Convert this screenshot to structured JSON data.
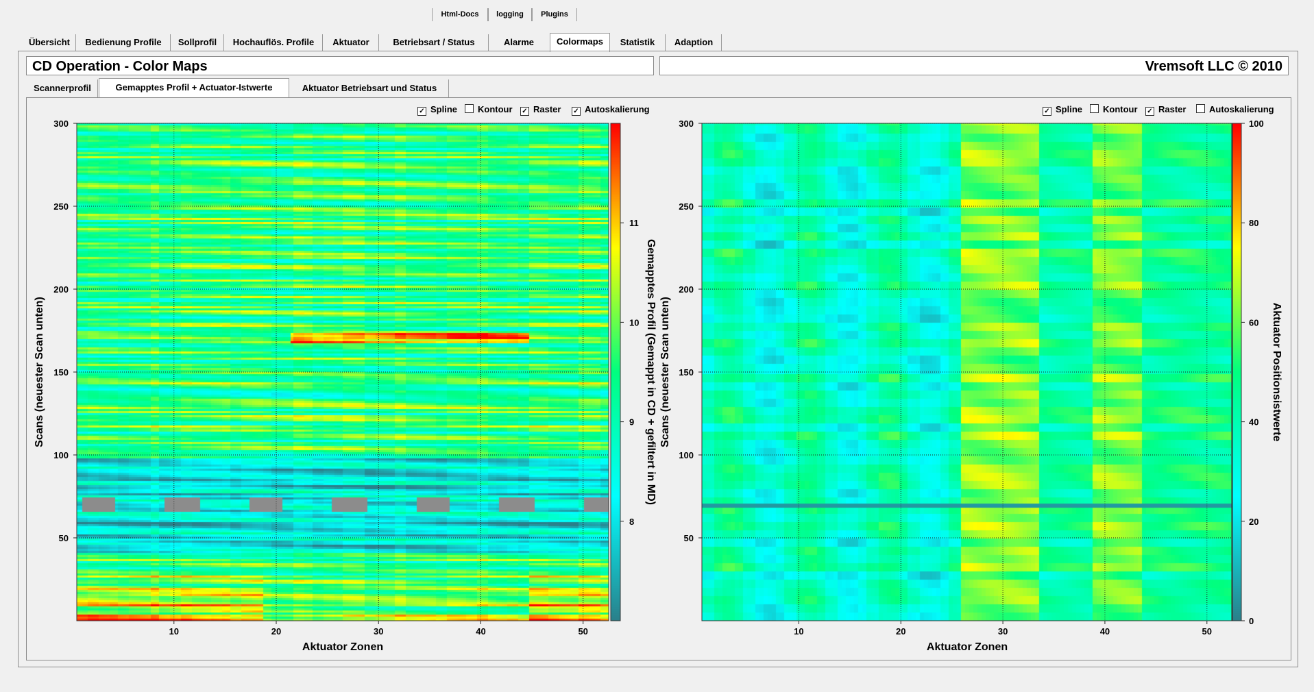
{
  "top_buttons": [
    {
      "label": "Html-Docs"
    },
    {
      "label": "logging"
    },
    {
      "label": "Plugins"
    }
  ],
  "tabs": [
    {
      "label": "Übersicht",
      "active": false
    },
    {
      "label": "Bedienung Profile",
      "active": false
    },
    {
      "label": "Sollprofil",
      "active": false
    },
    {
      "label": "Hochauflös. Profile",
      "active": false
    },
    {
      "label": "Aktuator",
      "active": false
    },
    {
      "label": "Betriebsart / Status",
      "active": false
    },
    {
      "label": "Alarme",
      "active": false
    },
    {
      "label": "Colormaps",
      "active": true
    },
    {
      "label": "Statistik",
      "active": false
    },
    {
      "label": "Adaption",
      "active": false
    }
  ],
  "header": {
    "title": "CD Operation - Color Maps",
    "copyright": "Vremsoft LLC © 2010"
  },
  "subtabs": [
    {
      "label": "Scannerprofil",
      "active": false
    },
    {
      "label": "Gemapptes Profil + Actuator-Istwerte",
      "active": true
    },
    {
      "label": "Aktuator Betriebsart und Status",
      "active": false
    }
  ],
  "left_options": [
    {
      "label": "Spline",
      "checked": true
    },
    {
      "label": "Kontour",
      "checked": false
    },
    {
      "label": "Raster",
      "checked": true
    },
    {
      "label": "Autoskalierung",
      "checked": true
    }
  ],
  "right_options": [
    {
      "label": "Spline",
      "checked": true
    },
    {
      "label": "Kontour",
      "checked": false
    },
    {
      "label": "Raster",
      "checked": true
    },
    {
      "label": "Autoskalierung",
      "checked": false
    }
  ],
  "chart_data": [
    {
      "type": "heatmap",
      "xlabel": "Aktuator Zonen",
      "ylabel": "Scans (neuester Scan unten)",
      "colorbar_label": "Gemapptes Profil (Gemappt in CD + gefiltert in MD)",
      "x_ticks": [
        "10",
        "20",
        "30",
        "40",
        "50"
      ],
      "y_ticks": [
        "50",
        "100",
        "150",
        "200",
        "250",
        "300"
      ],
      "colorbar_ticks": [
        "8",
        "9",
        "10",
        "11"
      ],
      "xlim": [
        0.5,
        52.5
      ],
      "ylim": [
        0,
        300
      ],
      "colorbar_range": [
        7,
        12
      ],
      "grid": true,
      "colormap": [
        "#2a7f8a",
        "#00ffff",
        "#00ff80",
        "#ffff00",
        "#ff0000"
      ]
    },
    {
      "type": "heatmap",
      "xlabel": "Aktuator Zonen",
      "ylabel": "Scans (neuester Scan unten)",
      "colorbar_label": "Aktuator Positionsistwerte",
      "x_ticks": [
        "10",
        "20",
        "30",
        "40",
        "50"
      ],
      "y_ticks": [
        "50",
        "100",
        "150",
        "200",
        "250",
        "300"
      ],
      "colorbar_ticks": [
        "0",
        "20",
        "40",
        "60",
        "80",
        "100"
      ],
      "xlim": [
        0.5,
        52.5
      ],
      "ylim": [
        0,
        300
      ],
      "colorbar_range": [
        0,
        100
      ],
      "grid": true,
      "colormap": [
        "#2a7f8a",
        "#00ffff",
        "#00ff80",
        "#ffff00",
        "#ff0000"
      ]
    }
  ]
}
